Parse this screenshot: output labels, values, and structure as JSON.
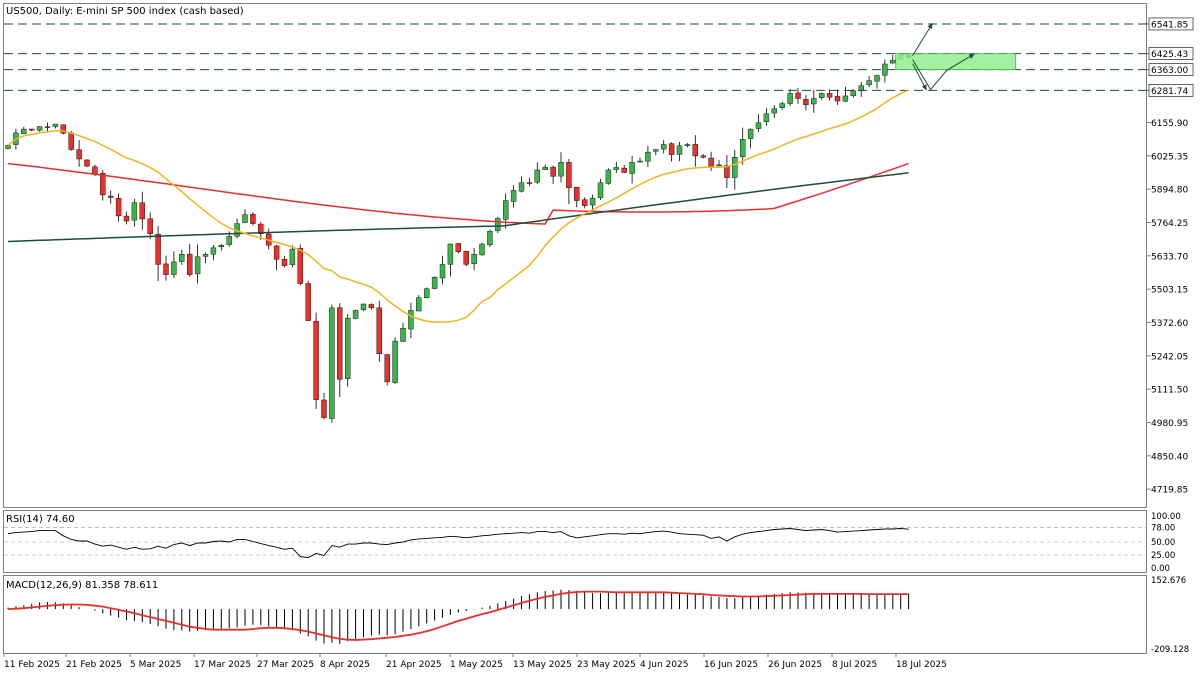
{
  "header": {
    "title": "US500, Daily:  E-mini SP 500 index (cash based)"
  },
  "chart_data": [
    {
      "type": "candlestick",
      "title": "US500, Daily:  E-mini SP 500 index (cash based)",
      "ylim": [
        4650,
        6620
      ],
      "y_ticks": [
        "6541.85",
        "6425.43",
        "6363.00",
        "6281.74",
        "6155.90",
        "6025.35",
        "5894.80",
        "5764.25",
        "5633.70",
        "5503.15",
        "5372.60",
        "5242.05",
        "5111.50",
        "4980.95",
        "4850.40",
        "4719.85"
      ],
      "x_ticks": [
        "11 Feb 2025",
        "21 Feb 2025",
        "5 Mar 2025",
        "17 Mar 2025",
        "27 Mar 2025",
        "8 Apr 2025",
        "21 Apr 2025",
        "1 May 2025",
        "13 May 2025",
        "23 May 2025",
        "4 Jun 2025",
        "16 Jun 2025",
        "26 Jun 2025",
        "8 Jul 2025",
        "18 Jul 2025"
      ],
      "levels": [
        {
          "value": 6541.85,
          "label": "6541.85"
        },
        {
          "value": 6425.43,
          "label": "6425.43"
        },
        {
          "value": 6363.0,
          "label": "6363.00"
        },
        {
          "value": 6281.74,
          "label": "6281.74"
        }
      ],
      "zone": {
        "from": 6363.0,
        "to": 6425.43,
        "color": "#90ee90"
      },
      "colors": {
        "up": "#3cb44b",
        "down": "#e6312e",
        "ma20": "#f0b323",
        "ma100": "#e6312e",
        "ma200": "#1d4d3a"
      },
      "closes": [
        6066,
        6115,
        6130,
        6126,
        6140,
        6139,
        6150,
        6114,
        6050,
        6013,
        5985,
        5955,
        5872,
        5862,
        5790,
        5770,
        5842,
        5778,
        5720,
        5600,
        5560,
        5610,
        5640,
        5560,
        5630,
        5640,
        5665,
        5675,
        5710,
        5760,
        5795,
        5760,
        5720,
        5675,
        5620,
        5595,
        5660,
        5525,
        5380,
        5070,
        5000,
        5430,
        5150,
        5390,
        5420,
        5445,
        5430,
        5250,
        5140,
        5300,
        5350,
        5420,
        5470,
        5505,
        5550,
        5600,
        5680,
        5650,
        5600,
        5640,
        5680,
        5730,
        5780,
        5850,
        5890,
        5920,
        5920,
        5970,
        5980,
        5945,
        6000,
        5900,
        5850,
        5830,
        5860,
        5920,
        5970,
        5980,
        5960,
        6000,
        6005,
        6040,
        6050,
        6070,
        6030,
        6065,
        6070,
        6025,
        6020,
        5985,
        5990,
        5940,
        6020,
        6090,
        6130,
        6155,
        6190,
        6210,
        6230,
        6270,
        6250,
        6225,
        6250,
        6270,
        6255,
        6240,
        6260,
        6280,
        6300,
        6320,
        6340,
        6385,
        6400,
        6420,
        6410
      ]
    },
    {
      "type": "line",
      "title": "RSI(14) 74.60",
      "ylim": [
        0,
        100
      ],
      "y_ticks": [
        "100.00",
        "78.00",
        "50.00",
        "25.00",
        "0.00"
      ],
      "values": [
        66,
        68,
        69,
        70,
        72,
        72,
        72,
        62,
        55,
        52,
        52,
        46,
        42,
        44,
        40,
        36,
        40,
        36,
        37,
        42,
        38,
        45,
        48,
        43,
        48,
        48,
        51,
        52,
        50,
        55,
        55,
        51,
        47,
        43,
        40,
        36,
        38,
        22,
        20,
        28,
        24,
        43,
        40,
        46,
        46,
        48,
        48,
        46,
        45,
        48,
        50,
        54,
        56,
        57,
        58,
        59,
        61,
        60,
        58,
        60,
        62,
        63,
        65,
        66,
        67,
        68,
        67,
        70,
        70,
        68,
        70,
        62,
        58,
        60,
        62,
        64,
        66,
        66,
        65,
        67,
        66,
        68,
        70,
        71,
        69,
        66,
        65,
        64,
        63,
        57,
        60,
        52,
        60,
        65,
        68,
        70,
        72,
        74,
        75,
        76,
        74,
        72,
        73,
        74,
        72,
        69,
        70,
        71,
        72,
        73,
        74,
        75,
        75,
        76,
        74.6
      ]
    },
    {
      "type": "bar",
      "title": "MACD(12,26,9) 81.358 78.611",
      "ylim": [
        -209.128,
        152.676
      ],
      "y_ticks": [
        "152.676",
        "-209.128"
      ],
      "histogram": [
        8,
        14,
        20,
        28,
        35,
        37,
        36,
        30,
        20,
        10,
        0,
        -8,
        -22,
        -34,
        -45,
        -58,
        -62,
        -70,
        -78,
        -90,
        -102,
        -110,
        -112,
        -118,
        -114,
        -110,
        -106,
        -104,
        -100,
        -96,
        -86,
        -82,
        -84,
        -90,
        -98,
        -106,
        -112,
        -128,
        -142,
        -165,
        -180,
        -176,
        -182,
        -168,
        -158,
        -148,
        -138,
        -134,
        -138,
        -132,
        -118,
        -105,
        -90,
        -75,
        -60,
        -45,
        -30,
        -18,
        -10,
        -2,
        8,
        18,
        30,
        42,
        55,
        68,
        78,
        88,
        95,
        98,
        102,
        100,
        96,
        88,
        84,
        84,
        86,
        88,
        90,
        92,
        90,
        88,
        86,
        86,
        82,
        80,
        78,
        76,
        72,
        66,
        64,
        58,
        58,
        62,
        66,
        70,
        76,
        80,
        84,
        88,
        88,
        86,
        86,
        86,
        84,
        82,
        80,
        80,
        80,
        80,
        80,
        80,
        81,
        81,
        81
      ],
      "signal": [
        0,
        2,
        5,
        9,
        13,
        17,
        21,
        23,
        24,
        24,
        22,
        18,
        13,
        5,
        -4,
        -12,
        -22,
        -32,
        -42,
        -52,
        -62,
        -72,
        -82,
        -92,
        -98,
        -104,
        -108,
        -108,
        -108,
        -108,
        -108,
        -104,
        -100,
        -98,
        -98,
        -100,
        -104,
        -110,
        -118,
        -128,
        -138,
        -148,
        -156,
        -160,
        -162,
        -160,
        -158,
        -154,
        -150,
        -146,
        -140,
        -134,
        -126,
        -116,
        -104,
        -90,
        -76,
        -62,
        -50,
        -38,
        -26,
        -16,
        -4,
        8,
        20,
        32,
        44,
        54,
        64,
        72,
        80,
        86,
        90,
        92,
        92,
        92,
        90,
        88,
        88,
        88,
        88,
        88,
        88,
        88,
        86,
        84,
        82,
        80,
        78,
        74,
        72,
        70,
        68,
        66,
        66,
        66,
        68,
        70,
        72,
        74,
        76,
        78,
        80,
        80,
        80,
        80,
        80,
        80,
        80,
        79,
        79,
        79,
        79,
        79,
        78.611
      ]
    }
  ]
}
